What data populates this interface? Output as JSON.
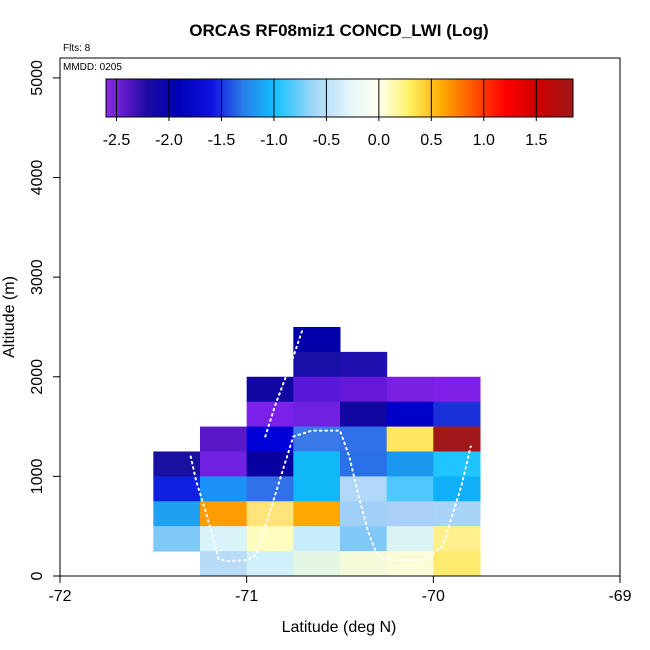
{
  "chart_data": {
    "type": "heatmap",
    "title": "ORCAS RF08miz1 CONCD_LWI (Log)",
    "subtitle_flights": "Flts: 8",
    "subtitle_date": "MMDD: 0205",
    "xlabel": "Latitude (deg N)",
    "ylabel": "Altitude (m)",
    "xlim": [
      -72,
      -69
    ],
    "ylim": [
      0,
      5200
    ],
    "x_ticks": [
      -72,
      -71,
      -70,
      -69
    ],
    "x_tick_labels": [
      "-72",
      "-71",
      "-70",
      "-69"
    ],
    "y_ticks": [
      0,
      1000,
      2000,
      3000,
      4000,
      5000
    ],
    "y_tick_labels": [
      "0",
      "1000",
      "2000",
      "3000",
      "4000",
      "5000"
    ],
    "colorbar": {
      "range": [
        -2.6,
        1.85
      ],
      "ticks": [
        -2.5,
        -2.0,
        -1.5,
        -1.0,
        -0.5,
        0.0,
        0.5,
        1.0,
        1.5
      ],
      "tick_labels": [
        "-2.5",
        "-2.0",
        "-1.5",
        "-1.0",
        "-0.5",
        "0.0",
        "0.5",
        "1.0",
        "1.5"
      ],
      "stops": [
        {
          "v": -2.6,
          "c": "#8a2be2"
        },
        {
          "v": -2.4,
          "c": "#5a18c8"
        },
        {
          "v": -2.2,
          "c": "#1a0aa0"
        },
        {
          "v": -1.9,
          "c": "#0000b8"
        },
        {
          "v": -1.6,
          "c": "#1010e0"
        },
        {
          "v": -1.3,
          "c": "#2a7ae8"
        },
        {
          "v": -1.0,
          "c": "#10c0ff"
        },
        {
          "v": -0.6,
          "c": "#a8d8f8"
        },
        {
          "v": -0.25,
          "c": "#e8f8fa"
        },
        {
          "v": 0.0,
          "c": "#fffff0"
        },
        {
          "v": 0.3,
          "c": "#fff060"
        },
        {
          "v": 0.6,
          "c": "#ffaa00"
        },
        {
          "v": 0.9,
          "c": "#ff5500"
        },
        {
          "v": 1.2,
          "c": "#ff0000"
        },
        {
          "v": 1.5,
          "c": "#d00000"
        },
        {
          "v": 1.85,
          "c": "#a01818"
        }
      ]
    },
    "cell_size": {
      "dlat": 0.25,
      "dalt": 250
    },
    "cells": [
      {
        "lat": -70.625,
        "alt": 2375,
        "v": -2.0,
        "c": "#0000aa"
      },
      {
        "lat": -70.625,
        "alt": 2125,
        "v": -2.3,
        "c": "#1a10a8"
      },
      {
        "lat": -70.375,
        "alt": 2125,
        "v": -2.3,
        "c": "#2010b0"
      },
      {
        "lat": -70.875,
        "alt": 1875,
        "v": -2.2,
        "c": "#1008a0"
      },
      {
        "lat": -70.625,
        "alt": 1875,
        "v": -2.5,
        "c": "#5a18d8"
      },
      {
        "lat": -70.375,
        "alt": 1875,
        "v": -2.5,
        "c": "#6418d8"
      },
      {
        "lat": -70.125,
        "alt": 1875,
        "v": -2.5,
        "c": "#7a20e0"
      },
      {
        "lat": -69.875,
        "alt": 1875,
        "v": -2.5,
        "c": "#8020e8"
      },
      {
        "lat": -70.875,
        "alt": 1625,
        "v": -2.5,
        "c": "#7a20e8"
      },
      {
        "lat": -70.625,
        "alt": 1625,
        "v": -2.5,
        "c": "#7020e0"
      },
      {
        "lat": -70.375,
        "alt": 1625,
        "v": -2.2,
        "c": "#1008a0"
      },
      {
        "lat": -70.125,
        "alt": 1625,
        "v": -1.9,
        "c": "#0000c8"
      },
      {
        "lat": -69.875,
        "alt": 1625,
        "v": -1.7,
        "c": "#1a30d8"
      },
      {
        "lat": -71.125,
        "alt": 1375,
        "v": -2.4,
        "c": "#5a18c8"
      },
      {
        "lat": -70.875,
        "alt": 1375,
        "v": -1.8,
        "c": "#0000d8"
      },
      {
        "lat": -70.625,
        "alt": 1375,
        "v": -1.3,
        "c": "#3a7ae8"
      },
      {
        "lat": -70.375,
        "alt": 1375,
        "v": -1.3,
        "c": "#3070e8"
      },
      {
        "lat": -70.125,
        "alt": 1375,
        "v": 0.4,
        "c": "#ffe860"
      },
      {
        "lat": -69.875,
        "alt": 1375,
        "v": 1.8,
        "c": "#a01818"
      },
      {
        "lat": -71.375,
        "alt": 1125,
        "v": -2.2,
        "c": "#1a10a0"
      },
      {
        "lat": -71.125,
        "alt": 1125,
        "v": -2.5,
        "c": "#7020e0"
      },
      {
        "lat": -70.875,
        "alt": 1125,
        "v": -2.1,
        "c": "#0800a0"
      },
      {
        "lat": -70.625,
        "alt": 1125,
        "v": -1.0,
        "c": "#10b8f8"
      },
      {
        "lat": -70.375,
        "alt": 1125,
        "v": -1.4,
        "c": "#2a70e8"
      },
      {
        "lat": -70.125,
        "alt": 1125,
        "v": -1.2,
        "c": "#1a98f0"
      },
      {
        "lat": -69.875,
        "alt": 1125,
        "v": -0.9,
        "c": "#20c4ff"
      },
      {
        "lat": -71.375,
        "alt": 875,
        "v": -1.6,
        "c": "#1020e0"
      },
      {
        "lat": -71.125,
        "alt": 875,
        "v": -1.2,
        "c": "#1a90f8"
      },
      {
        "lat": -70.875,
        "alt": 875,
        "v": -1.4,
        "c": "#3070e8"
      },
      {
        "lat": -70.625,
        "alt": 875,
        "v": -1.0,
        "c": "#10b8f8"
      },
      {
        "lat": -70.375,
        "alt": 875,
        "v": -0.6,
        "c": "#b0d8f8"
      },
      {
        "lat": -70.125,
        "alt": 875,
        "v": -0.8,
        "c": "#50c8ff"
      },
      {
        "lat": -69.875,
        "alt": 875,
        "v": -1.0,
        "c": "#10b0f8"
      },
      {
        "lat": -71.375,
        "alt": 625,
        "v": -1.1,
        "c": "#20a0f0"
      },
      {
        "lat": -71.125,
        "alt": 625,
        "v": 0.7,
        "c": "#ff9c00"
      },
      {
        "lat": -70.875,
        "alt": 625,
        "v": 0.3,
        "c": "#ffe47a"
      },
      {
        "lat": -70.625,
        "alt": 625,
        "v": 0.65,
        "c": "#ffa800"
      },
      {
        "lat": -70.375,
        "alt": 625,
        "v": -0.7,
        "c": "#a0d0f8"
      },
      {
        "lat": -70.125,
        "alt": 625,
        "v": -0.6,
        "c": "#a8d0f8"
      },
      {
        "lat": -69.875,
        "alt": 625,
        "v": -0.6,
        "c": "#a8d4f8"
      },
      {
        "lat": -71.375,
        "alt": 375,
        "v": -0.8,
        "c": "#80c8f8"
      },
      {
        "lat": -71.125,
        "alt": 375,
        "v": -0.3,
        "c": "#d8f4fa"
      },
      {
        "lat": -70.875,
        "alt": 375,
        "v": 0.15,
        "c": "#fffcc0"
      },
      {
        "lat": -70.625,
        "alt": 375,
        "v": -0.4,
        "c": "#c8ecfa"
      },
      {
        "lat": -70.375,
        "alt": 375,
        "v": -0.8,
        "c": "#80c8f8"
      },
      {
        "lat": -70.125,
        "alt": 375,
        "v": -0.3,
        "c": "#daf4f6"
      },
      {
        "lat": -69.875,
        "alt": 375,
        "v": 0.25,
        "c": "#fff08c"
      },
      {
        "lat": -71.125,
        "alt": 125,
        "v": -0.5,
        "c": "#b8dcf8"
      },
      {
        "lat": -70.875,
        "alt": 125,
        "v": -0.3,
        "c": "#d0f0fa"
      },
      {
        "lat": -70.625,
        "alt": 125,
        "v": -0.15,
        "c": "#e4f6e4"
      },
      {
        "lat": -70.375,
        "alt": 125,
        "v": 0.05,
        "c": "#f4fad8"
      },
      {
        "lat": -70.125,
        "alt": 125,
        "v": 0.1,
        "c": "#fdfcd8"
      },
      {
        "lat": -69.875,
        "alt": 125,
        "v": 0.35,
        "c": "#ffea70"
      }
    ],
    "flight_track": [
      [
        -71.3,
        1200
      ],
      [
        -71.27,
        950
      ],
      [
        -71.22,
        650
      ],
      [
        -71.18,
        380
      ],
      [
        -71.15,
        170
      ],
      [
        -71.1,
        150
      ],
      [
        -71.0,
        160
      ],
      [
        -70.95,
        210
      ],
      [
        -70.9,
        500
      ],
      [
        -70.85,
        800
      ],
      [
        -70.8,
        1100
      ],
      [
        -70.75,
        1400
      ],
      [
        -70.65,
        1460
      ],
      [
        -70.5,
        1460
      ],
      [
        -70.45,
        1200
      ],
      [
        -70.4,
        800
      ],
      [
        -70.35,
        450
      ],
      [
        -70.3,
        200
      ],
      [
        -70.2,
        160
      ],
      [
        -70.05,
        160
      ],
      [
        -69.95,
        300
      ],
      [
        -69.9,
        600
      ],
      [
        -69.85,
        900
      ],
      [
        -69.8,
        1300
      ]
    ],
    "flight_track_upper": [
      [
        -70.9,
        1400
      ],
      [
        -70.85,
        1700
      ],
      [
        -70.8,
        1950
      ],
      [
        -70.75,
        2200
      ],
      [
        -70.7,
        2480
      ]
    ]
  }
}
